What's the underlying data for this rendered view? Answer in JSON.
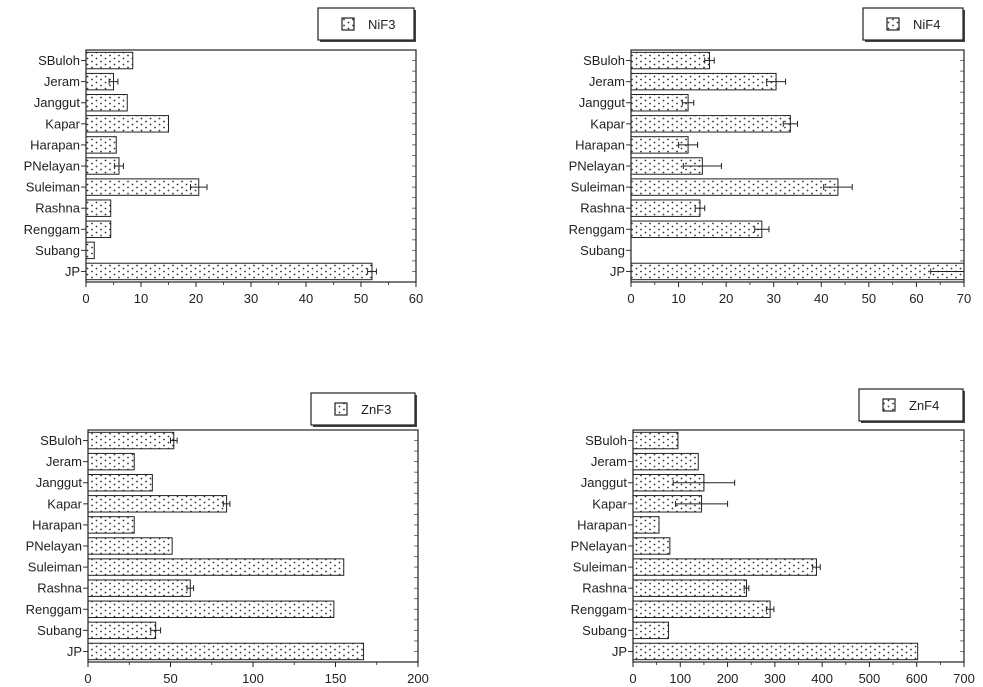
{
  "chart_data": [
    {
      "type": "bar",
      "orientation": "horizontal",
      "legend": "NiF3",
      "legend_position": "top-right",
      "categories": [
        "SBuloh",
        "Jeram",
        "Janggut",
        "Kapar",
        "Harapan",
        "PNelayan",
        "Suleiman",
        "Rashna",
        "Renggam",
        "Subang",
        "JP"
      ],
      "values": [
        8.5,
        5,
        7.5,
        15,
        5.5,
        6,
        20.5,
        4.5,
        4.5,
        1.5,
        52
      ],
      "errors": [
        0,
        0.8,
        0,
        0,
        0,
        0.8,
        1.5,
        0,
        0,
        0,
        0.8
      ],
      "xlim": [
        0,
        60
      ],
      "xticks": [
        "0",
        "10",
        "20",
        "30",
        "40",
        "50",
        "60"
      ],
      "grid": false
    },
    {
      "type": "bar",
      "orientation": "horizontal",
      "legend": "NiF4",
      "legend_position": "top-right",
      "categories": [
        "SBuloh",
        "Jeram",
        "Janggut",
        "Kapar",
        "Harapan",
        "PNelayan",
        "Suleiman",
        "Rashna",
        "Renggam",
        "Subang",
        "JP"
      ],
      "values": [
        16.5,
        30.5,
        12,
        33.5,
        12,
        15,
        43.5,
        14.5,
        27.5,
        0,
        70
      ],
      "errors": [
        1,
        2,
        1.2,
        1.5,
        2,
        4,
        3,
        1,
        1.5,
        0,
        7
      ],
      "xlim": [
        0,
        70
      ],
      "xticks": [
        "0",
        "10",
        "20",
        "30",
        "40",
        "50",
        "60",
        "70"
      ],
      "grid": false
    },
    {
      "type": "bar",
      "orientation": "horizontal",
      "legend": "ZnF3",
      "legend_position": "top-right",
      "categories": [
        "SBuloh",
        "Jeram",
        "Janggut",
        "Kapar",
        "Harapan",
        "PNelayan",
        "Suleiman",
        "Rashna",
        "Renggam",
        "Subang",
        "JP"
      ],
      "values": [
        52,
        28,
        39,
        84,
        28,
        51,
        155,
        62,
        149,
        41,
        167
      ],
      "errors": [
        2,
        0,
        0,
        2,
        0,
        0,
        0,
        2,
        0,
        3,
        0
      ],
      "xlim": [
        0,
        200
      ],
      "xticks": [
        "0",
        "50",
        "100",
        "150",
        "200"
      ],
      "grid": false
    },
    {
      "type": "bar",
      "orientation": "horizontal",
      "legend": "ZnF4",
      "legend_position": "top-right",
      "categories": [
        "SBuloh",
        "Jeram",
        "Janggut",
        "Kapar",
        "Harapan",
        "PNelayan",
        "Suleiman",
        "Rashna",
        "Renggam",
        "Subang",
        "JP"
      ],
      "values": [
        95,
        138,
        150,
        145,
        55,
        78,
        388,
        240,
        290,
        75,
        602
      ],
      "errors": [
        0,
        0,
        65,
        55,
        0,
        0,
        8,
        5,
        8,
        0,
        0
      ],
      "xlim": [
        0,
        700
      ],
      "xticks": [
        "0",
        "100",
        "200",
        "300",
        "400",
        "500",
        "600",
        "700"
      ],
      "grid": false
    }
  ]
}
